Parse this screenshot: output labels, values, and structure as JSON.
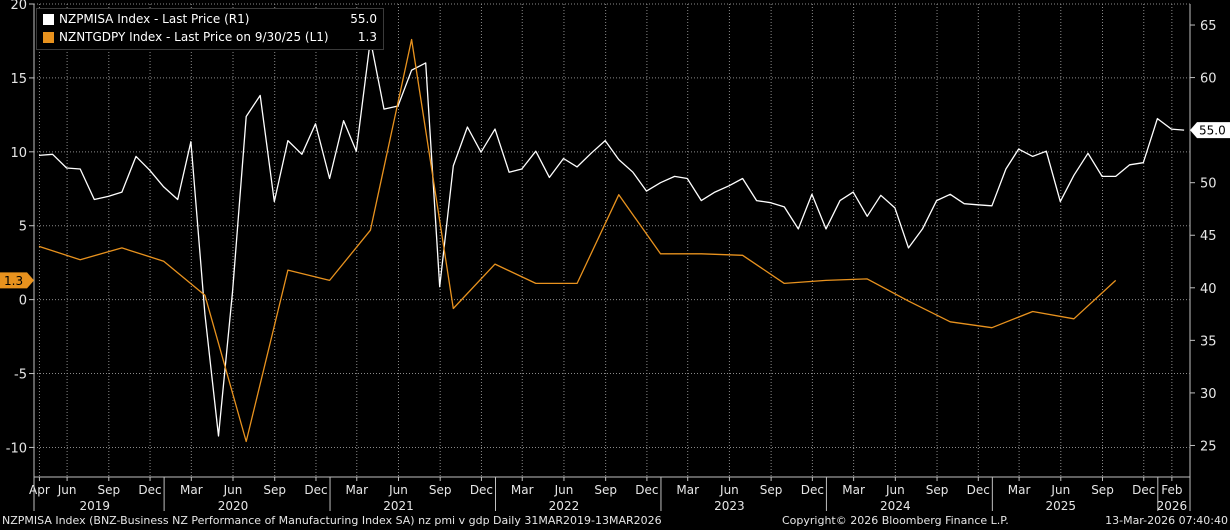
{
  "chart_data": {
    "type": "line",
    "legend_placement": "top-left",
    "grid": true,
    "left_axis": {
      "range": [
        -12,
        20
      ],
      "ticks": [
        -10,
        -5,
        0,
        5,
        10,
        15,
        20
      ],
      "tick_labels": [
        "-10",
        "-5",
        "0",
        "5",
        "10",
        "15",
        "20"
      ]
    },
    "right_axis": {
      "range": [
        22,
        67
      ],
      "ticks": [
        25,
        30,
        35,
        40,
        45,
        50,
        55,
        60,
        65
      ],
      "tick_labels": [
        "25",
        "30",
        "35",
        "40",
        "45",
        "50",
        "55",
        "60",
        "65"
      ]
    },
    "x_axis": {
      "range": [
        "2019-03-20",
        "2026-03-13"
      ],
      "month_ticks": [
        {
          "date": "2019-04-01",
          "label": "Apr"
        },
        {
          "date": "2019-06-01",
          "label": "Jun"
        },
        {
          "date": "2019-09-01",
          "label": "Sep"
        },
        {
          "date": "2019-12-01",
          "label": "Dec"
        },
        {
          "date": "2020-03-01",
          "label": "Mar"
        },
        {
          "date": "2020-06-01",
          "label": "Jun"
        },
        {
          "date": "2020-09-01",
          "label": "Sep"
        },
        {
          "date": "2020-12-01",
          "label": "Dec"
        },
        {
          "date": "2021-03-01",
          "label": "Mar"
        },
        {
          "date": "2021-06-01",
          "label": "Jun"
        },
        {
          "date": "2021-09-01",
          "label": "Sep"
        },
        {
          "date": "2021-12-01",
          "label": "Dec"
        },
        {
          "date": "2022-03-01",
          "label": "Mar"
        },
        {
          "date": "2022-06-01",
          "label": "Jun"
        },
        {
          "date": "2022-09-01",
          "label": "Sep"
        },
        {
          "date": "2022-12-01",
          "label": "Dec"
        },
        {
          "date": "2023-03-01",
          "label": "Mar"
        },
        {
          "date": "2023-06-01",
          "label": "Jun"
        },
        {
          "date": "2023-09-01",
          "label": "Sep"
        },
        {
          "date": "2023-12-01",
          "label": "Dec"
        },
        {
          "date": "2024-03-01",
          "label": "Mar"
        },
        {
          "date": "2024-06-01",
          "label": "Jun"
        },
        {
          "date": "2024-09-01",
          "label": "Sep"
        },
        {
          "date": "2024-12-01",
          "label": "Dec"
        },
        {
          "date": "2025-03-01",
          "label": "Mar"
        },
        {
          "date": "2025-06-01",
          "label": "Jun"
        },
        {
          "date": "2025-09-01",
          "label": "Sep"
        },
        {
          "date": "2025-12-01",
          "label": "Dec"
        },
        {
          "date": "2026-02-01",
          "label": "Feb"
        }
      ],
      "year_ticks": [
        {
          "date": "2019-08-01",
          "label": "2019"
        },
        {
          "date": "2020-06-01",
          "label": "2020"
        },
        {
          "date": "2021-06-01",
          "label": "2021"
        },
        {
          "date": "2022-06-01",
          "label": "2022"
        },
        {
          "date": "2023-06-01",
          "label": "2023"
        },
        {
          "date": "2024-06-01",
          "label": "2024"
        },
        {
          "date": "2025-06-01",
          "label": "2025"
        },
        {
          "date": "2026-02-01",
          "label": "2026"
        }
      ],
      "year_separators": [
        "2020-01-01",
        "2021-01-01",
        "2022-01-01",
        "2023-01-01",
        "2024-01-01",
        "2025-01-01",
        "2026-01-01"
      ]
    },
    "series": [
      {
        "name": "NZPMISA Index - Last Price (R1)",
        "axis": "right",
        "color": "#ffffff",
        "last_value": "55.0",
        "points": [
          [
            "2019-03-31",
            52.6
          ],
          [
            "2019-04-30",
            52.7
          ],
          [
            "2019-05-31",
            51.4
          ],
          [
            "2019-06-30",
            51.3
          ],
          [
            "2019-07-31",
            48.4
          ],
          [
            "2019-08-31",
            48.7
          ],
          [
            "2019-09-30",
            49.1
          ],
          [
            "2019-10-31",
            52.5
          ],
          [
            "2019-11-30",
            51.2
          ],
          [
            "2019-12-31",
            49.6
          ],
          [
            "2020-01-31",
            48.4
          ],
          [
            "2020-02-29",
            53.9
          ],
          [
            "2020-03-31",
            37.5
          ],
          [
            "2020-04-30",
            25.9
          ],
          [
            "2020-05-31",
            39.7
          ],
          [
            "2020-06-30",
            56.3
          ],
          [
            "2020-07-31",
            58.3
          ],
          [
            "2020-08-31",
            48.2
          ],
          [
            "2020-09-30",
            54.0
          ],
          [
            "2020-10-31",
            52.7
          ],
          [
            "2020-11-30",
            55.6
          ],
          [
            "2020-12-31",
            50.4
          ],
          [
            "2021-01-31",
            55.9
          ],
          [
            "2021-02-28",
            53.0
          ],
          [
            "2021-03-31",
            63.6
          ],
          [
            "2021-04-30",
            57.0
          ],
          [
            "2021-05-31",
            57.3
          ],
          [
            "2021-06-30",
            60.7
          ],
          [
            "2021-07-31",
            61.4
          ],
          [
            "2021-08-31",
            40.1
          ],
          [
            "2021-09-30",
            51.6
          ],
          [
            "2021-10-31",
            55.3
          ],
          [
            "2021-11-30",
            52.9
          ],
          [
            "2021-12-31",
            55.1
          ],
          [
            "2022-01-31",
            51.0
          ],
          [
            "2022-02-28",
            51.3
          ],
          [
            "2022-03-31",
            53.0
          ],
          [
            "2022-04-30",
            50.5
          ],
          [
            "2022-05-31",
            52.3
          ],
          [
            "2022-06-30",
            51.5
          ],
          [
            "2022-07-31",
            52.8
          ],
          [
            "2022-08-31",
            54.0
          ],
          [
            "2022-09-30",
            52.2
          ],
          [
            "2022-10-31",
            51.0
          ],
          [
            "2022-11-30",
            49.2
          ],
          [
            "2022-12-31",
            50.0
          ],
          [
            "2023-01-31",
            50.6
          ],
          [
            "2023-02-28",
            50.4
          ],
          [
            "2023-03-31",
            48.3
          ],
          [
            "2023-04-30",
            49.1
          ],
          [
            "2023-05-31",
            49.7
          ],
          [
            "2023-06-30",
            50.4
          ],
          [
            "2023-07-31",
            48.3
          ],
          [
            "2023-08-31",
            48.1
          ],
          [
            "2023-09-30",
            47.7
          ],
          [
            "2023-10-31",
            45.6
          ],
          [
            "2023-11-30",
            48.9
          ],
          [
            "2023-12-31",
            45.6
          ],
          [
            "2024-01-31",
            48.3
          ],
          [
            "2024-02-29",
            49.1
          ],
          [
            "2024-03-31",
            46.8
          ],
          [
            "2024-04-30",
            48.8
          ],
          [
            "2024-05-31",
            47.6
          ],
          [
            "2024-06-30",
            43.8
          ],
          [
            "2024-07-31",
            45.6
          ],
          [
            "2024-08-31",
            48.3
          ],
          [
            "2024-09-30",
            48.9
          ],
          [
            "2024-10-31",
            48.0
          ],
          [
            "2024-11-30",
            47.9
          ],
          [
            "2024-12-31",
            47.8
          ],
          [
            "2025-01-31",
            51.3
          ],
          [
            "2025-02-28",
            53.2
          ],
          [
            "2025-03-31",
            52.5
          ],
          [
            "2025-04-30",
            53.0
          ],
          [
            "2025-05-31",
            48.2
          ],
          [
            "2025-06-30",
            50.7
          ],
          [
            "2025-07-31",
            52.8
          ],
          [
            "2025-08-31",
            50.6
          ],
          [
            "2025-09-30",
            50.6
          ],
          [
            "2025-10-31",
            51.7
          ],
          [
            "2025-11-30",
            51.9
          ],
          [
            "2025-12-31",
            56.1
          ],
          [
            "2026-01-31",
            55.1
          ],
          [
            "2026-02-28",
            55.0
          ]
        ]
      },
      {
        "name": "NZNTGDPY Index - Last Price on 9/30/25 (L1)",
        "axis": "left",
        "color": "#e8921e",
        "last_value": "1.3",
        "points": [
          [
            "2019-03-31",
            3.6
          ],
          [
            "2019-06-30",
            2.7
          ],
          [
            "2019-09-30",
            3.5
          ],
          [
            "2019-12-31",
            2.6
          ],
          [
            "2020-03-31",
            0.3
          ],
          [
            "2020-06-30",
            -9.6
          ],
          [
            "2020-09-30",
            2.0
          ],
          [
            "2020-12-31",
            1.3
          ],
          [
            "2021-03-31",
            4.7
          ],
          [
            "2021-06-30",
            17.6
          ],
          [
            "2021-09-30",
            -0.6
          ],
          [
            "2021-12-31",
            2.4
          ],
          [
            "2022-03-31",
            1.1
          ],
          [
            "2022-06-30",
            1.1
          ],
          [
            "2022-09-30",
            7.1
          ],
          [
            "2022-12-31",
            3.1
          ],
          [
            "2023-03-31",
            3.1
          ],
          [
            "2023-06-30",
            3.0
          ],
          [
            "2023-09-30",
            1.1
          ],
          [
            "2023-12-31",
            1.3
          ],
          [
            "2024-03-31",
            1.4
          ],
          [
            "2024-06-30",
            -0.1
          ],
          [
            "2024-09-30",
            -1.5
          ],
          [
            "2024-12-31",
            -1.9
          ],
          [
            "2025-03-31",
            -0.8
          ],
          [
            "2025-06-30",
            -1.3
          ],
          [
            "2025-09-30",
            1.3
          ]
        ]
      }
    ]
  },
  "footer": {
    "description": "NZPMISA Index (BNZ-Business NZ Performance of Manufacturing Index SA) nz pmi v gdp Daily 31MAR2019-13MAR2026",
    "copyright": "Copyright© 2026 Bloomberg Finance L.P.",
    "timestamp": "13-Mar-2026 07:40:40"
  }
}
